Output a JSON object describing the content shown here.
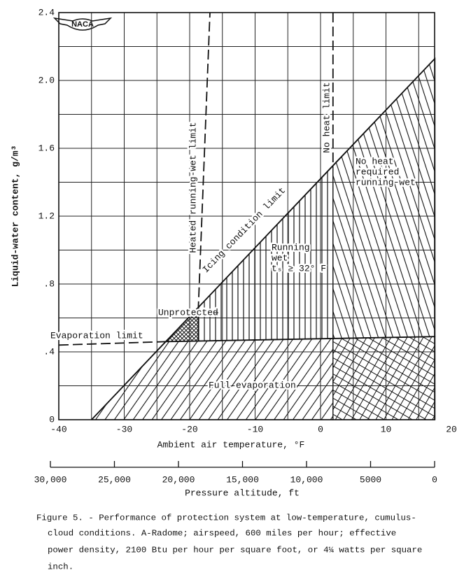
{
  "chart_data": {
    "type": "line",
    "logo": "NACA",
    "xlabel": "Ambient air temperature, °F",
    "ylabel": "Liquid-water content, g/m³",
    "xlim": [
      -40,
      20
    ],
    "ylim": [
      0,
      2.4
    ],
    "xticks": [
      -40,
      -30,
      -20,
      -10,
      0,
      10,
      20
    ],
    "yticks": [
      0,
      {
        "value": 0.4,
        "label": ".4"
      },
      {
        "value": 0.8,
        "label": ".8"
      },
      1.2,
      1.6,
      {
        "value": 2,
        "label": "2.0"
      },
      2.4
    ],
    "minor_xticks": [
      -35,
      -25,
      -15,
      -5,
      5,
      15
    ],
    "minor_yticks": [
      0.2,
      0.6,
      1,
      1.4,
      1.8,
      2.2
    ],
    "grid": true,
    "x2label": "Pressure altitude, ft",
    "x2lim": [
      30000,
      0
    ],
    "x2ticks": [
      {
        "value": 30000,
        "label": "30,000"
      },
      {
        "value": 25000,
        "label": "25,000"
      },
      {
        "value": 20000,
        "label": "20,000"
      },
      {
        "value": 15000,
        "label": "15,000"
      },
      {
        "value": 10000,
        "label": "10,000"
      },
      5000,
      0
    ],
    "series": [
      {
        "name": "Icing condition limit",
        "color": "#111111",
        "line_style": "solid",
        "x": [
          -35,
          17.5
        ],
        "values": [
          0,
          2.13
        ]
      },
      {
        "name": "Evaporation limit",
        "color": "#111111",
        "line_style": "dashed",
        "x": [
          -40,
          -23.7
        ],
        "values": [
          0.44,
          0.46
        ]
      },
      {
        "color": "#111111",
        "line_style": "solid",
        "x": [
          -23.7,
          17.5
        ],
        "values": [
          0.46,
          0.49
        ]
      },
      {
        "name": "Heated running-wet limit",
        "color": "#111111",
        "line_style": "dashed",
        "x": [
          -18.7,
          -16.9
        ],
        "values": [
          0.64,
          2.4
        ]
      },
      {
        "name": "No heat limit",
        "color": "#111111",
        "line_style": "dashed",
        "x": [
          1.9,
          1.9
        ],
        "values": [
          2.4,
          1.5
        ]
      }
    ],
    "regions": [
      {
        "label": [
          "Unprotected"
        ],
        "pattern": "dense-crosshatch",
        "x": [
          -23.7,
          -18.7,
          -18.7
        ],
        "y": [
          0.46,
          0.464,
          0.66
        ]
      },
      {
        "label": [
          "Running",
          "wet",
          "tₛ ≥ 32° F"
        ],
        "pattern": "vertical",
        "x": [
          -18.7,
          1.9,
          1.9,
          -18.7
        ],
        "y": [
          0.464,
          0.479,
          1.5,
          0.66
        ]
      },
      {
        "label": [
          "No heat",
          "required",
          "running wet"
        ],
        "pattern": "backslash",
        "x": [
          1.9,
          17.5,
          17.5,
          1.9
        ],
        "y": [
          0.479,
          0.49,
          2.13,
          1.5
        ]
      },
      {
        "label": [
          "Full evaporation"
        ],
        "pattern": "slash",
        "x": [
          -35,
          1.9,
          1.9,
          -23.7
        ],
        "y": [
          0,
          0,
          0.479,
          0.46
        ]
      },
      {
        "pattern": "crosshatch",
        "x": [
          1.9,
          17.5,
          17.5,
          1.9
        ],
        "y": [
          0,
          0,
          0.49,
          0.479
        ]
      }
    ],
    "caption": [
      "Figure 5. - Performance of protection system at low-temperature, cumulus-",
      "cloud conditions.  A-Radome; airspeed, 600 miles per hour; effective",
      "power density, 2100 Btu per hour per square foot, or 4¼ watts per square",
      "inch."
    ]
  }
}
